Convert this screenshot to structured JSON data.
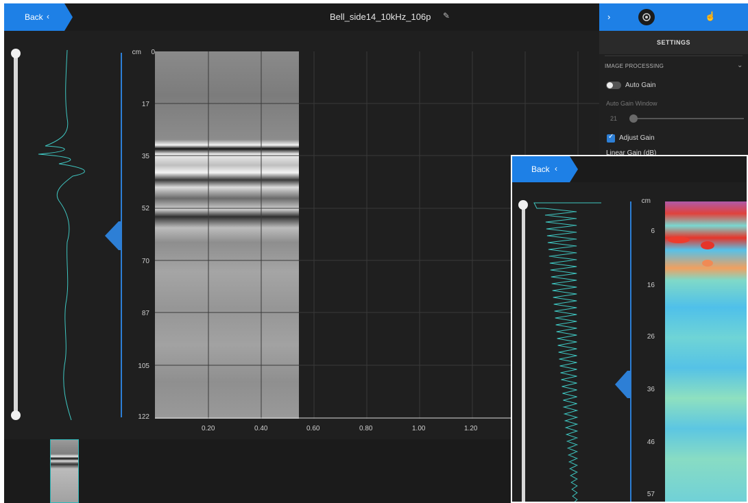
{
  "main": {
    "back_label": "Back",
    "title": "Bell_side14_10kHz_106p",
    "y_unit": "cm",
    "y_ticks": [
      "0",
      "17",
      "35",
      "52",
      "70",
      "87",
      "105",
      "122"
    ],
    "x_ticks": [
      "0.20",
      "0.40",
      "0.60",
      "0.80",
      "1.00",
      "1.20"
    ]
  },
  "settings": {
    "header": "SETTINGS",
    "section": "IMAGE PROCESSING",
    "auto_gain_label": "Auto Gain",
    "auto_gain_on": false,
    "auto_gain_window_label": "Auto Gain Window",
    "auto_gain_window_value": "21",
    "adjust_gain_label": "Adjust Gain",
    "adjust_gain_checked": true,
    "linear_gain_label": "Linear Gain (dB)"
  },
  "inset": {
    "back_label": "Back",
    "y_unit": "cm",
    "y_ticks": [
      "6",
      "16",
      "26",
      "36",
      "46",
      "57"
    ]
  },
  "colors": {
    "accent": "#1e80e6",
    "trace": "#3fc7c2",
    "axis": "#2d7fd6"
  },
  "icons": {
    "back_chevron": "chevron-left-icon",
    "edit": "pencil-icon",
    "panel_toggle": "chevron-right-icon",
    "settings": "gear-icon",
    "touch": "touch-icon",
    "expand": "chevron-down-icon"
  }
}
